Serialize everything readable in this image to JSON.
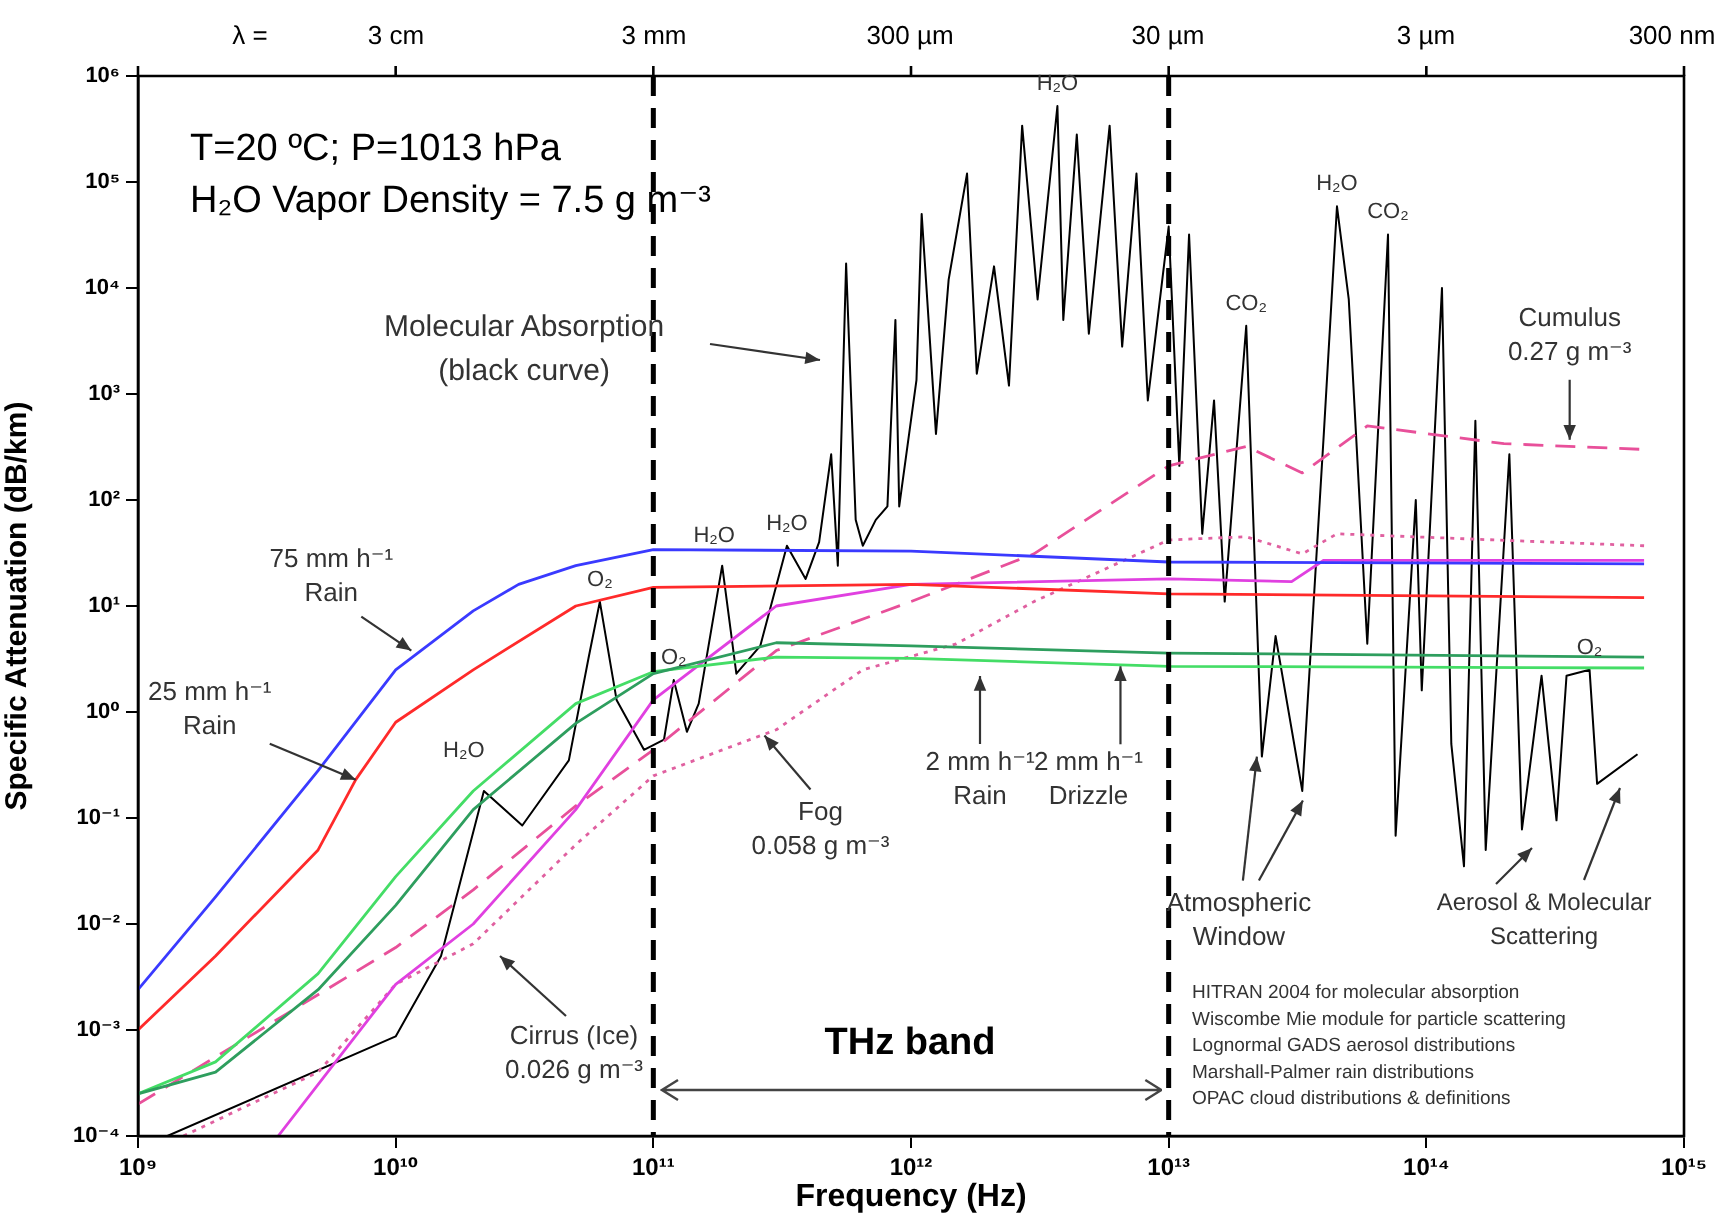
{
  "chart_data": {
    "type": "line",
    "xlabel": "Frequency (Hz)",
    "ylabel": "Specific Attenuation (dB/km)",
    "log": "xy",
    "grid": false,
    "marker": "none",
    "xlim": [
      1000000000.0,
      1000000000000000.0
    ],
    "xticks": [
      {
        "value": 1000000000.0,
        "label": "10⁹"
      },
      {
        "value": 10000000000.0,
        "label": "10¹⁰"
      },
      {
        "value": 100000000000.0,
        "label": "10¹¹"
      },
      {
        "value": 1000000000000.0,
        "label": "10¹²"
      },
      {
        "value": 10000000000000.0,
        "label": "10¹³"
      },
      {
        "value": 100000000000000.0,
        "label": "10¹⁴"
      },
      {
        "value": 1000000000000000.0,
        "label": "10¹⁵"
      }
    ],
    "ylim": [
      0.0001,
      1000000
    ],
    "yticks": [
      {
        "value": 0.0001,
        "label": "10⁻⁴"
      },
      {
        "value": 0.001,
        "label": "10⁻³"
      },
      {
        "value": 0.01,
        "label": "10⁻²"
      },
      {
        "value": 0.1,
        "label": "10⁻¹"
      },
      {
        "value": 1,
        "label": "10⁰"
      },
      {
        "value": 10,
        "label": "10¹"
      },
      {
        "value": 100,
        "label": "10²"
      },
      {
        "value": 1000,
        "label": "10³"
      },
      {
        "value": 10000,
        "label": "10⁴"
      },
      {
        "value": 100000,
        "label": "10⁵"
      },
      {
        "value": 1000000,
        "label": "10⁶"
      }
    ],
    "series": [
      {
        "color": "#3a3aff",
        "line_style": "solid",
        "x": [
          1000000000.0,
          2000000000.0,
          5000000000.0,
          10000000000.0,
          20000000000.0,
          30000000000.0,
          50000000000.0,
          100000000000.0,
          1000000000000.0,
          10000000000000.0,
          700000000000000.0
        ],
        "values": [
          0.0024,
          0.018,
          0.28,
          2.5,
          9,
          16,
          24,
          34,
          33,
          26,
          25
        ]
      },
      {
        "color": "#ff2a2a",
        "line_style": "solid",
        "x": [
          1000000000.0,
          2000000000.0,
          5000000000.0,
          7000000000.0,
          10000000000.0,
          20000000000.0,
          50000000000.0,
          100000000000.0,
          1000000000000.0,
          10000000000000.0,
          700000000000000.0
        ],
        "values": [
          0.001,
          0.005,
          0.05,
          0.23,
          0.8,
          2.5,
          10,
          15,
          16,
          13,
          12
        ]
      },
      {
        "color": "#2e9e5e",
        "line_style": "solid",
        "x": [
          1000000000.0,
          2000000000.0,
          5000000000.0,
          10000000000.0,
          20000000000.0,
          50000000000.0,
          100000000000.0,
          300000000000.0,
          1000000000000.0,
          10000000000000.0,
          700000000000000.0
        ],
        "values": [
          0.00025,
          0.0004,
          0.0024,
          0.015,
          0.12,
          0.78,
          2.3,
          4.5,
          4.2,
          3.6,
          3.3
        ]
      },
      {
        "color": "#44dd66",
        "line_style": "solid",
        "x": [
          1000000000.0,
          2000000000.0,
          5000000000.0,
          10000000000.0,
          20000000000.0,
          50000000000.0,
          100000000000.0,
          300000000000.0,
          1000000000000.0,
          10000000000000.0,
          700000000000000.0
        ],
        "values": [
          0.00025,
          0.0005,
          0.0034,
          0.028,
          0.18,
          1.2,
          2.4,
          3.3,
          3.2,
          2.7,
          2.6
        ]
      },
      {
        "color": "#e040e0",
        "line_style": "solid",
        "x": [
          3500000000.0,
          10000000000.0,
          20000000000.0,
          50000000000.0,
          100000000000.0,
          300000000000.0,
          1000000000000.0,
          10000000000000.0,
          30000000000000.0,
          40000000000000.0,
          700000000000000.0
        ],
        "values": [
          0.0001,
          0.0027,
          0.01,
          0.12,
          1.3,
          10,
          16,
          18,
          17,
          27,
          27
        ]
      },
      {
        "color": "#e8509a",
        "line_style": "dashed",
        "x": [
          1000000000.0,
          10000000000.0,
          20000000000.0,
          50000000000.0,
          100000000000.0,
          300000000000.0,
          1000000000000.0,
          3000000000000.0,
          10000000000000.0,
          20000000000000.0,
          33000000000000.0,
          59000000000000.0,
          200000000000000.0,
          700000000000000.0
        ],
        "values": [
          0.0002,
          0.006,
          0.021,
          0.13,
          0.44,
          3.8,
          11,
          31,
          210,
          320,
          180,
          500,
          340,
          300
        ]
      },
      {
        "color": "#e060a0",
        "line_style": "dotted",
        "x": [
          1500000000.0,
          5000000000.0,
          10000000000.0,
          20000000000.0,
          50000000000.0,
          100000000000.0,
          300000000000.0,
          650000000000.0,
          1500000000000.0,
          3000000000000.0,
          10000000000000.0,
          20000000000000.0,
          33000000000000.0,
          45000000000000.0,
          700000000000000.0
        ],
        "values": [
          0.0001,
          0.0004,
          0.0027,
          0.0065,
          0.056,
          0.25,
          0.68,
          2.5,
          4.4,
          11,
          42,
          45,
          31,
          48,
          37
        ]
      },
      {
        "color": "#000000",
        "line_style": "solid",
        "x": [
          1300000000.0,
          10000000000.0,
          15000000000.0,
          22000000000.0,
          31000000000.0,
          47000000000.0,
          56000000000.0,
          62000000000.0,
          72000000000.0,
          92000000000.0,
          110000000000.0,
          120000000000.0,
          135000000000.0,
          150000000000.0,
          185000000000.0,
          210000000000.0,
          260000000000.0,
          330000000000.0,
          390000000000.0,
          440000000000.0,
          490000000000.0,
          520000000000.0,
          560000000000.0,
          610000000000.0,
          650000000000.0,
          730000000000.0,
          810000000000.0,
          870000000000.0,
          900000000000.0,
          1050000000000.0,
          1100000000000.0,
          1250000000000.0,
          1400000000000.0,
          1650000000000.0,
          1800000000000.0,
          2100000000000.0,
          2400000000000.0,
          2700000000000.0,
          3100000000000.0,
          3700000000000.0,
          3900000000000.0,
          4400000000000.0,
          4900000000000.0,
          5900000000000.0,
          6600000000000.0,
          7500000000000.0,
          8300000000000.0,
          10000000000000.0,
          11000000000000.0,
          12000000000000.0,
          13500000000000.0,
          15000000000000.0,
          16500000000000.0,
          20000000000000.0,
          23000000000000.0,
          26000000000000.0,
          33000000000000.0,
          40000000000000.0,
          45000000000000.0,
          50000000000000.0,
          59000000000000.0,
          71000000000000.0,
          76000000000000.0,
          91000000000000.0,
          96000000000000.0,
          115000000000000.0,
          125000000000000.0,
          140000000000000.0,
          155000000000000.0,
          170000000000000.0,
          210000000000000.0,
          235000000000000.0,
          280000000000000.0,
          320000000000000.0,
          350000000000000.0,
          430000000000000.0,
          460000000000000.0,
          660000000000000.0
        ],
        "values": [
          0.0001,
          0.00087,
          0.005,
          0.18,
          0.085,
          0.35,
          3.2,
          11,
          1.3,
          0.44,
          0.55,
          2,
          0.65,
          1.2,
          24,
          2.3,
          4.2,
          37,
          18,
          40,
          270,
          24,
          17000,
          65,
          37,
          65,
          87,
          5000,
          87,
          1350,
          50000,
          420,
          12000,
          120000,
          1550,
          16000,
          1200,
          340000,
          7800,
          520000,
          5000,
          280000,
          3700,
          340000,
          2800,
          120000,
          870,
          38000,
          210,
          32000,
          48,
          870,
          11,
          4400,
          0.38,
          5.2,
          0.18,
          420,
          59000,
          7800,
          4.4,
          32000,
          0.068,
          100,
          1.6,
          10000,
          0.5,
          0.035,
          560,
          0.05,
          270,
          0.078,
          2.2,
          0.095,
          2.2,
          2.5,
          0.21,
          0.4
        ]
      }
    ],
    "ref_lines": [
      {
        "axis": "x",
        "value": 100000000000.0,
        "color": "#000000",
        "line_style": "dashed"
      },
      {
        "axis": "x",
        "value": 10000000000000.0,
        "color": "#000000",
        "line_style": "dashed"
      }
    ],
    "annotations": [
      "λ =",
      "T=20 ºC; P=1013 hPa",
      "H₂O Vapor Density = 7.5 g m⁻³",
      "THz band",
      "HITRAN 2004 for molecular absorption\nWiscombe Mie module for particle scattering\nLognormal GADS aerosol distributions\nMarshall-Palmer rain distributions\nOPAC cloud distributions & definitions",
      "Molecular Absorption\n(black curve)",
      {
        "text": "75 mm h⁻¹\nRain",
        "x": 11500000000.0,
        "y": 3.8
      },
      {
        "text": "25 mm h⁻¹\nRain",
        "x": 7000000000.0,
        "y": 0.23
      },
      "Cirrus (Ice)\n0.026 g m⁻³",
      {
        "text": "Fog\n0.058 g m⁻³",
        "x": 270000000000.0,
        "y": 0.6
      },
      "2 mm h⁻¹\nRain",
      {
        "text": "2 mm h⁻¹\nDrizzle",
        "x": 6500000000000.0,
        "y": 2.7
      },
      {
        "text": "Atmospheric\nWindow",
        "x": 22000000000000.0,
        "y": 0.38
      },
      "Aerosol & Molecular\nScattering",
      {
        "text": "Cumulus\n0.27 g m⁻³",
        "x": 360000000000000.0,
        "y": 370
      },
      {
        "text": "H₂O",
        "x": 22000000000.0,
        "y": 0.18
      },
      {
        "text": "O₂",
        "x": 62000000000.0,
        "y": 11
      },
      {
        "text": "O₂",
        "x": 120000000000.0,
        "y": 2
      },
      {
        "text": "H₂O",
        "x": 185000000000.0,
        "y": 24
      },
      {
        "text": "H₂O",
        "x": 330000000000.0,
        "y": 37
      },
      {
        "text": "H₂O",
        "x": 3700000000000.0,
        "y": 520000
      },
      {
        "text": "CO₂",
        "x": 20000000000000.0,
        "y": 4400
      },
      {
        "text": "H₂O",
        "x": 45000000000000.0,
        "y": 59000
      },
      {
        "text": "CO₂",
        "x": 71000000000000.0,
        "y": 32000
      },
      {
        "text": "O₂",
        "x": 430000000000000.0,
        "y": 2.5
      },
      "3 cm",
      "3 mm",
      "300 µm",
      "30 µm",
      "3 µm",
      "300 nm"
    ]
  }
}
